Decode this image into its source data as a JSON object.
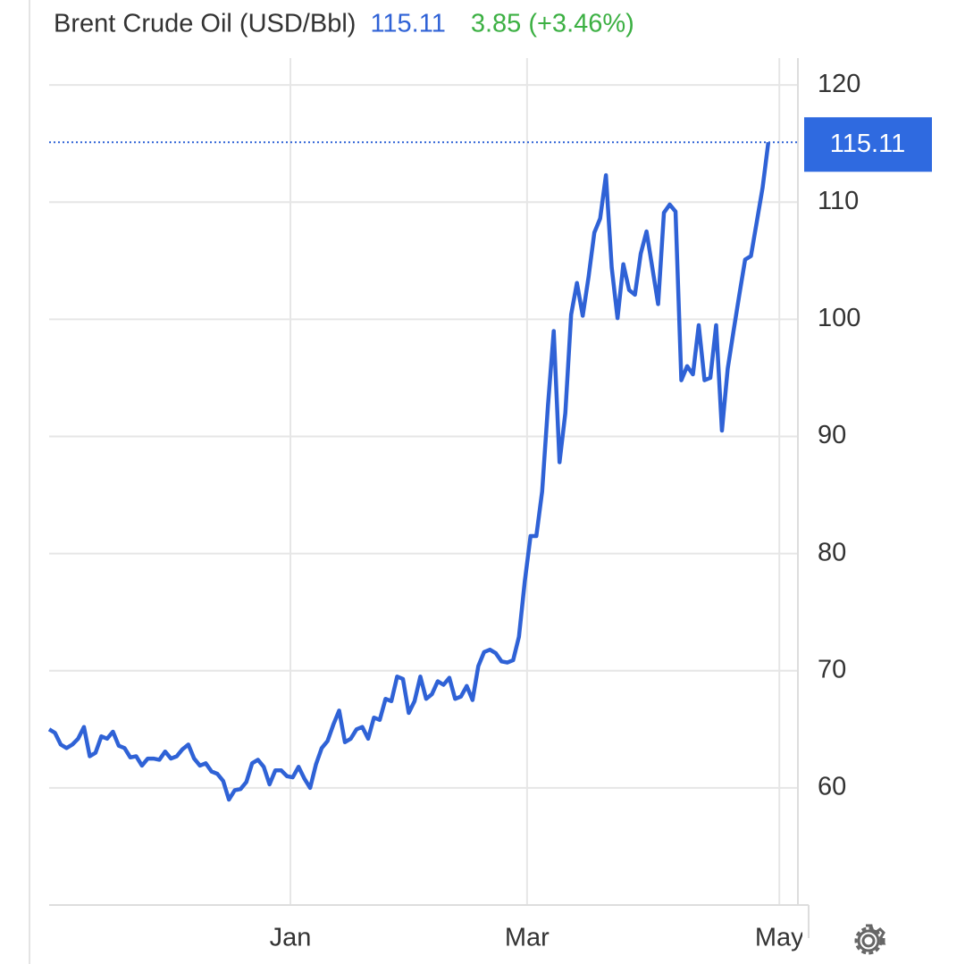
{
  "chart_data": {
    "type": "line",
    "title": "Brent Crude Oil (USD/Bbl)",
    "price": 115.11,
    "change": "3.85 (+3.46%)",
    "x": [
      0,
      1,
      2,
      3,
      4,
      5,
      6,
      7,
      8,
      9,
      10,
      11,
      12,
      13,
      14,
      15,
      16,
      17,
      18,
      19,
      20,
      21,
      22,
      23,
      24,
      25,
      26,
      27,
      28,
      29,
      30,
      31,
      32,
      33,
      34,
      35,
      36,
      37,
      38,
      39,
      40,
      41,
      42,
      43,
      44,
      45,
      46,
      47,
      48,
      49,
      50,
      51,
      52,
      53,
      54,
      55,
      56,
      57,
      58,
      59,
      60,
      61,
      62,
      63,
      64,
      65,
      66,
      67,
      68,
      69,
      70,
      71,
      72,
      73,
      74,
      75,
      76,
      77,
      78,
      79,
      80,
      81,
      82,
      83,
      84,
      85,
      86,
      87,
      88,
      89,
      90,
      91,
      92,
      93,
      94,
      95,
      96,
      97,
      98,
      99,
      100,
      101,
      102,
      103,
      104,
      105,
      106,
      107,
      108,
      109,
      110,
      111,
      112,
      113,
      114,
      115,
      116,
      117,
      118,
      119,
      120,
      121,
      122,
      123,
      124
    ],
    "series": [
      {
        "name": "Brent Crude Oil",
        "color": "#2f62d6",
        "values": [
          65.0,
          64.7,
          63.7,
          63.4,
          63.7,
          64.2,
          65.2,
          62.7,
          63.0,
          64.4,
          64.2,
          64.8,
          63.6,
          63.4,
          62.6,
          62.7,
          61.9,
          62.5,
          62.5,
          62.4,
          63.1,
          62.5,
          62.7,
          63.3,
          63.7,
          62.5,
          61.9,
          62.1,
          61.4,
          61.2,
          60.6,
          59.0,
          59.8,
          59.9,
          60.5,
          62.1,
          62.4,
          61.8,
          60.3,
          61.5,
          61.5,
          61.0,
          60.9,
          61.8,
          60.8,
          60.0,
          62.0,
          63.4,
          64.0,
          65.4,
          66.6,
          63.9,
          64.2,
          65.0,
          65.2,
          64.2,
          66.0,
          65.8,
          67.6,
          67.4,
          69.5,
          69.3,
          66.4,
          67.4,
          69.5,
          67.6,
          68.0,
          69.1,
          68.8,
          69.4,
          67.6,
          67.8,
          68.7,
          67.5,
          70.4,
          71.6,
          71.8,
          71.5,
          70.8,
          70.7,
          70.9,
          72.9,
          77.6,
          81.5,
          81.5,
          85.3,
          92.6,
          99.0,
          87.8,
          92.0,
          100.4,
          103.1,
          100.3,
          103.6,
          107.4,
          108.6,
          112.3,
          104.4,
          100.1,
          104.7,
          102.5,
          102.1,
          105.6,
          107.5,
          104.4,
          101.3,
          109.1,
          109.8,
          109.2,
          94.8,
          96.0,
          95.3,
          99.5,
          94.8,
          95.0,
          99.5,
          90.5,
          95.8,
          99.0,
          102.1,
          105.1,
          105.4,
          108.3,
          111.2,
          115.11
        ]
      }
    ],
    "xlim": [
      0,
      129.1
    ],
    "xticks": [
      {
        "value": 41.6,
        "label": "Jan"
      },
      {
        "value": 82.4,
        "label": "Mar"
      },
      {
        "value": 125.9,
        "label": "May"
      }
    ],
    "ylim": [
      50,
      122.3
    ],
    "yticks": [
      60,
      70,
      80,
      90,
      100,
      110,
      120
    ],
    "grid": true
  }
}
